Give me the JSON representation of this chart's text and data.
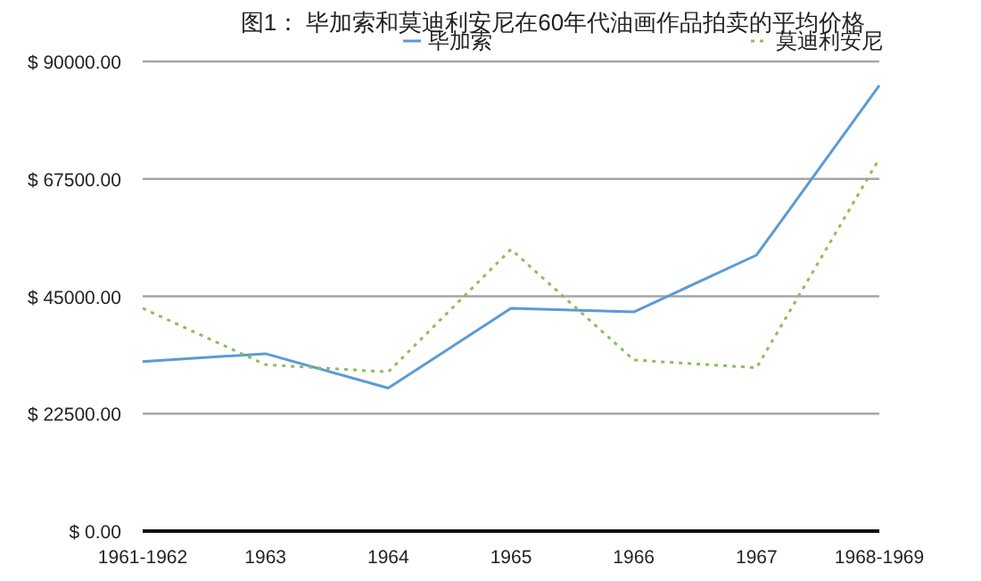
{
  "chart_data": {
    "type": "line",
    "title": "图1： 毕加索和莫迪利安尼在60年代油画作品拍卖的平均价格",
    "categories": [
      "1961-1962",
      "1963",
      "1964",
      "1965",
      "1966",
      "1967",
      "1968-1969"
    ],
    "series": [
      {
        "name": "毕加索",
        "color": "#5b9bd5",
        "line_style": "solid",
        "values": [
          32500,
          34000,
          27400,
          42700,
          42000,
          52900,
          85400
        ]
      },
      {
        "name": "莫迪利安尼",
        "color": "#8cbf5a",
        "line_style": "dotted",
        "values": [
          42700,
          31900,
          30500,
          54000,
          32800,
          31300,
          71400
        ]
      }
    ],
    "ylim": [
      0,
      90000
    ],
    "yticks": [
      {
        "value": 0,
        "label": "$ 0.00"
      },
      {
        "value": 22500,
        "label": "$ 22500.00"
      },
      {
        "value": 45000,
        "label": "$ 45000.00"
      },
      {
        "value": 67500,
        "label": "$ 67500.00"
      },
      {
        "value": 90000,
        "label": "$ 90000.00"
      }
    ],
    "grid": "y",
    "legend": "top"
  }
}
